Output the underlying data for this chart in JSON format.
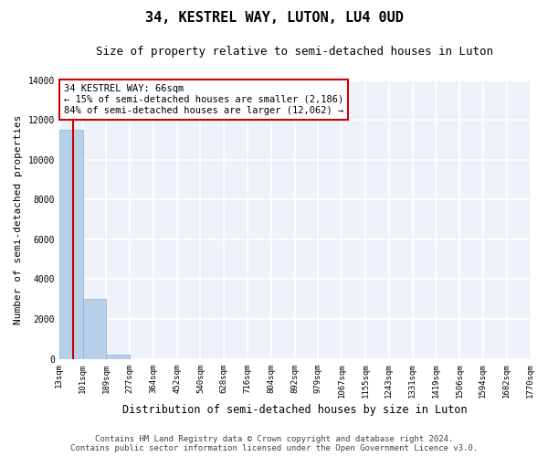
{
  "title": "34, KESTREL WAY, LUTON, LU4 0UD",
  "subtitle": "Size of property relative to semi-detached houses in Luton",
  "xlabel": "Distribution of semi-detached houses by size in Luton",
  "ylabel": "Number of semi-detached properties",
  "annotation_line1": "34 KESTREL WAY: 66sqm",
  "annotation_line2": "← 15% of semi-detached houses are smaller (2,186)",
  "annotation_line3": "84% of semi-detached houses are larger (12,062) →",
  "bar_edges": [
    13,
    101,
    189,
    277,
    364,
    452,
    540,
    628,
    716,
    804,
    892,
    979,
    1067,
    1155,
    1243,
    1331,
    1419,
    1506,
    1594,
    1682,
    1770
  ],
  "bar_heights": [
    11500,
    3000,
    200,
    0,
    0,
    0,
    0,
    0,
    0,
    0,
    0,
    0,
    0,
    0,
    0,
    0,
    0,
    0,
    0,
    0
  ],
  "bar_color": "#b8cfe8",
  "bar_edgecolor": "#8ab0d4",
  "vline_color": "#cc0000",
  "vline_x": 66,
  "annotation_box_color": "#cc0000",
  "ylim": [
    0,
    14000
  ],
  "yticks": [
    0,
    2000,
    4000,
    6000,
    8000,
    10000,
    12000,
    14000
  ],
  "tick_labels": [
    "13sqm",
    "101sqm",
    "189sqm",
    "277sqm",
    "364sqm",
    "452sqm",
    "540sqm",
    "628sqm",
    "716sqm",
    "804sqm",
    "892sqm",
    "979sqm",
    "1067sqm",
    "1155sqm",
    "1243sqm",
    "1331sqm",
    "1419sqm",
    "1506sqm",
    "1594sqm",
    "1682sqm",
    "1770sqm"
  ],
  "footer_line1": "Contains HM Land Registry data © Crown copyright and database right 2024.",
  "footer_line2": "Contains public sector information licensed under the Open Government Licence v3.0.",
  "background_color": "#eef2f8",
  "grid_color": "#ffffff",
  "title_fontsize": 11,
  "subtitle_fontsize": 9,
  "axis_label_fontsize": 8,
  "tick_fontsize": 6.5,
  "annotation_fontsize": 7.5,
  "footer_fontsize": 6.5
}
